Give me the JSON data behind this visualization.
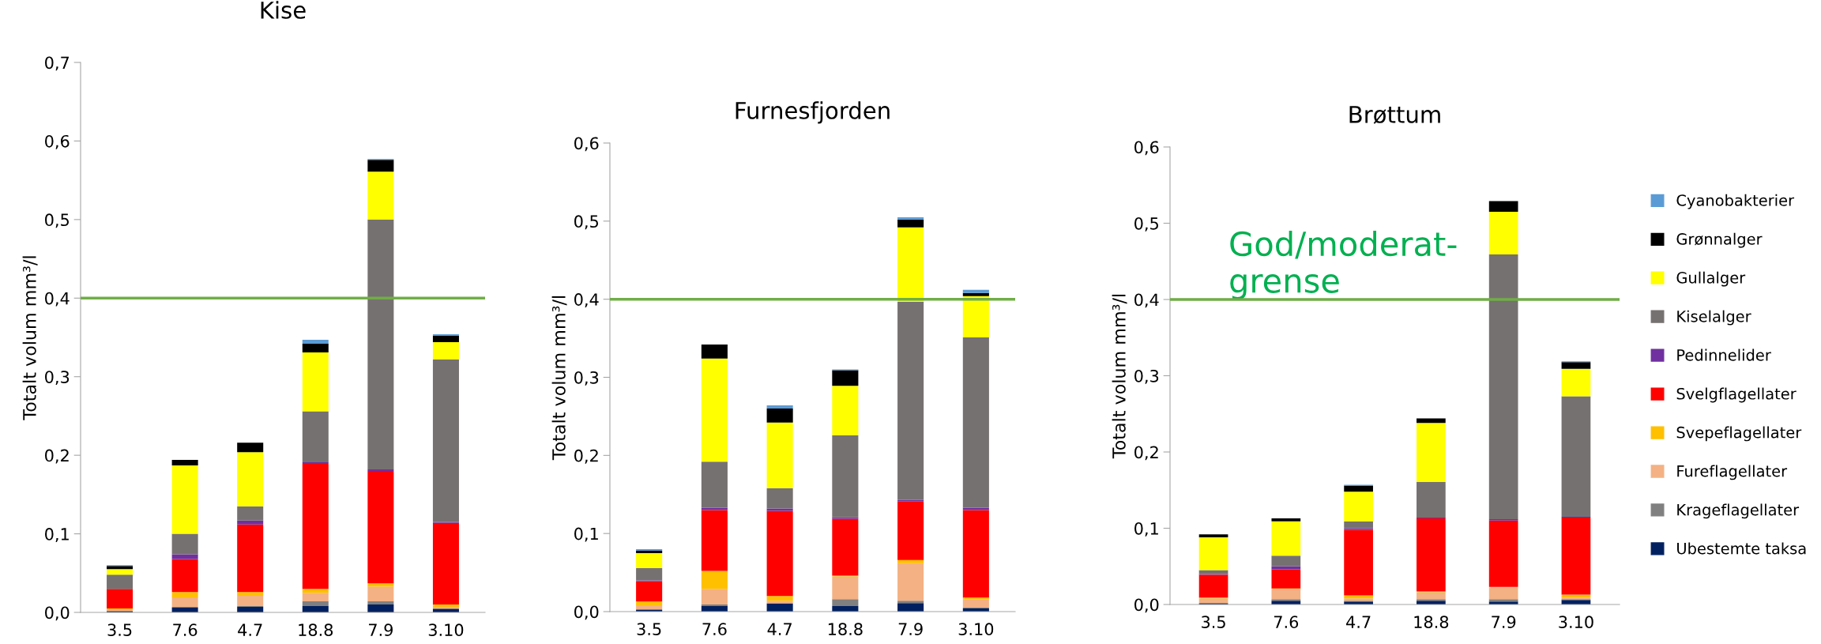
{
  "chart_data": [
    {
      "type": "bar",
      "stacked": true,
      "title": "Kise",
      "ylabel": "Totalt volum mm³/l",
      "categories": [
        "3.5",
        "7.6",
        "4.7",
        "18.8",
        "7.9",
        "3.10"
      ],
      "ylim": [
        0,
        0.7
      ],
      "yticks": [
        {
          "value": 0,
          "label": "0,0"
        },
        {
          "value": 0.1,
          "label": "0,1"
        },
        {
          "value": 0.2,
          "label": "0,2"
        },
        {
          "value": 0.3,
          "label": "0,3"
        },
        {
          "value": 0.4,
          "label": "0,4"
        },
        {
          "value": 0.5,
          "label": "0,5"
        },
        {
          "value": 0.6,
          "label": "0,6"
        },
        {
          "value": 0.7,
          "label": "0,7"
        }
      ],
      "grid": false,
      "legend": false,
      "ref_lines": [
        {
          "axis": "y",
          "value": 0.4,
          "color": "#70ad47"
        }
      ],
      "series": [
        {
          "color": "#002060",
          "values": [
            0.001,
            0.006,
            0.007,
            0.008,
            0.01,
            0.004
          ]
        },
        {
          "color": "#808080",
          "values": [
            0.001,
            0.001,
            0.001,
            0.006,
            0.004,
            0.001
          ]
        },
        {
          "color": "#f4b183",
          "values": [
            0.001,
            0.012,
            0.013,
            0.011,
            0.019,
            0.002
          ]
        },
        {
          "color": "#ffc000",
          "values": [
            0.002,
            0.007,
            0.005,
            0.005,
            0.004,
            0.003
          ]
        },
        {
          "color": "#ff0000",
          "values": [
            0.025,
            0.042,
            0.086,
            0.159,
            0.143,
            0.104
          ]
        },
        {
          "color": "#7030a0",
          "values": [
            0,
            0.006,
            0.005,
            0.002,
            0.002,
            0.001
          ]
        },
        {
          "color": "#767171",
          "values": [
            0.018,
            0.026,
            0.018,
            0.065,
            0.318,
            0.207
          ]
        },
        {
          "color": "#ffff00",
          "values": [
            0.007,
            0.087,
            0.069,
            0.075,
            0.061,
            0.022
          ]
        },
        {
          "color": "#000000",
          "values": [
            0.004,
            0.007,
            0.012,
            0.011,
            0.015,
            0.008
          ]
        },
        {
          "color": "#5b9bd5",
          "values": [
            0.001,
            0,
            0,
            0.005,
            0.001,
            0.002
          ]
        }
      ]
    },
    {
      "type": "bar",
      "stacked": true,
      "title": "Furnesfjorden",
      "ylabel": "Totalt volum mm³/l",
      "categories": [
        "3.5",
        "7.6",
        "4.7",
        "18.8",
        "7.9",
        "3.10"
      ],
      "ylim": [
        0,
        0.6
      ],
      "yticks": [
        {
          "value": 0,
          "label": "0,0"
        },
        {
          "value": 0.1,
          "label": "0,1"
        },
        {
          "value": 0.2,
          "label": "0,2"
        },
        {
          "value": 0.3,
          "label": "0,3"
        },
        {
          "value": 0.4,
          "label": "0,4"
        },
        {
          "value": 0.5,
          "label": "0,5"
        },
        {
          "value": 0.6,
          "label": "0,6"
        }
      ],
      "grid": false,
      "legend": false,
      "ref_lines": [
        {
          "axis": "y",
          "value": 0.4,
          "color": "#70ad47"
        }
      ],
      "series": [
        {
          "color": "#002060",
          "values": [
            0.002,
            0.007,
            0.01,
            0.007,
            0.011,
            0.004
          ]
        },
        {
          "color": "#808080",
          "values": [
            0.001,
            0.002,
            0.001,
            0.009,
            0.003,
            0.001
          ]
        },
        {
          "color": "#f4b183",
          "values": [
            0.005,
            0.02,
            0.003,
            0.029,
            0.048,
            0.011
          ]
        },
        {
          "color": "#ffc000",
          "values": [
            0.005,
            0.023,
            0.006,
            0.001,
            0.004,
            0.002
          ]
        },
        {
          "color": "#ff0000",
          "values": [
            0.026,
            0.078,
            0.109,
            0.073,
            0.075,
            0.112
          ]
        },
        {
          "color": "#7030a0",
          "values": [
            0.001,
            0.003,
            0.003,
            0.002,
            0.002,
            0.003
          ]
        },
        {
          "color": "#767171",
          "values": [
            0.016,
            0.059,
            0.026,
            0.105,
            0.254,
            0.218
          ]
        },
        {
          "color": "#ffff00",
          "values": [
            0.019,
            0.132,
            0.084,
            0.063,
            0.095,
            0.053
          ]
        },
        {
          "color": "#000000",
          "values": [
            0.003,
            0.018,
            0.018,
            0.02,
            0.01,
            0.004
          ]
        },
        {
          "color": "#5b9bd5",
          "values": [
            0.002,
            0,
            0.004,
            0.001,
            0.003,
            0.004
          ]
        }
      ]
    },
    {
      "type": "bar",
      "stacked": true,
      "title": "Brøttum",
      "ylabel": "Totalt volum mm³/l",
      "categories": [
        "3.5",
        "7.6",
        "4.7",
        "18.8",
        "7.9",
        "3.10"
      ],
      "ylim": [
        0,
        0.6
      ],
      "yticks": [
        {
          "value": 0,
          "label": "0,0"
        },
        {
          "value": 0.1,
          "label": "0,1"
        },
        {
          "value": 0.2,
          "label": "0,2"
        },
        {
          "value": 0.3,
          "label": "0,3"
        },
        {
          "value": 0.4,
          "label": "0,4"
        },
        {
          "value": 0.5,
          "label": "0,5"
        },
        {
          "value": 0.6,
          "label": "0,6"
        }
      ],
      "grid": false,
      "legend": "right",
      "ref_lines": [
        {
          "axis": "y",
          "value": 0.4,
          "color": "#70ad47",
          "label": "God/moderat-\ngrense"
        }
      ],
      "series": [
        {
          "name": "Ubestemte taksa",
          "color": "#002060",
          "values": [
            0.001,
            0.005,
            0.004,
            0.005,
            0.004,
            0.006
          ]
        },
        {
          "name": "Krageflagellater",
          "color": "#808080",
          "values": [
            0.001,
            0.002,
            0.001,
            0.002,
            0.003,
            0.001
          ]
        },
        {
          "name": "Fureflagellater",
          "color": "#f4b183",
          "values": [
            0.006,
            0.013,
            0.003,
            0.009,
            0.015,
            0.002
          ]
        },
        {
          "name": "Svepeflagellater",
          "color": "#ffc000",
          "values": [
            0.001,
            0.001,
            0.004,
            0.001,
            0.001,
            0.004
          ]
        },
        {
          "name": "Svelgflagellater",
          "color": "#ff0000",
          "values": [
            0.03,
            0.025,
            0.086,
            0.096,
            0.087,
            0.101
          ]
        },
        {
          "name": "Pedinnelider",
          "color": "#7030a0",
          "values": [
            0.001,
            0.004,
            0.002,
            0.001,
            0.002,
            0.001
          ]
        },
        {
          "name": "Kiselalger",
          "color": "#767171",
          "values": [
            0.005,
            0.014,
            0.009,
            0.047,
            0.347,
            0.158
          ]
        },
        {
          "name": "Gullalger",
          "color": "#ffff00",
          "values": [
            0.043,
            0.045,
            0.039,
            0.077,
            0.056,
            0.036
          ]
        },
        {
          "name": "Grønnalger",
          "color": "#000000",
          "values": [
            0.004,
            0.004,
            0.008,
            0.006,
            0.014,
            0.009
          ]
        },
        {
          "name": "Cyanobakterier",
          "color": "#5b9bd5",
          "values": [
            0,
            0,
            0.001,
            0,
            0,
            0.001
          ]
        }
      ]
    }
  ]
}
